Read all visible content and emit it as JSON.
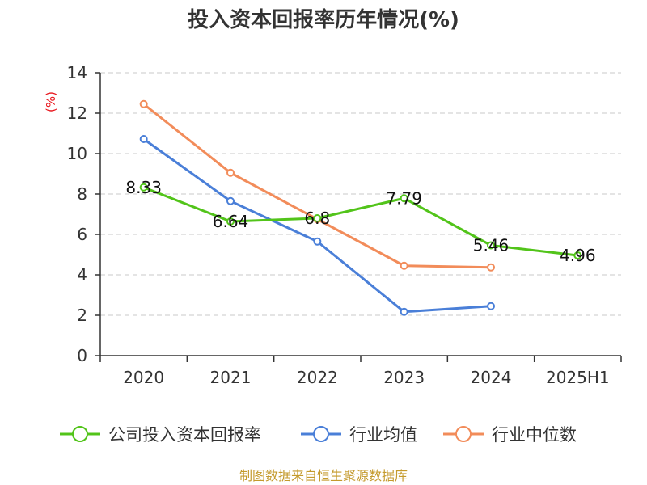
{
  "chart_data": {
    "type": "line",
    "title": "投入资本回报率历年情况(%)",
    "ylabel": "(%)",
    "categories": [
      "2020",
      "2021",
      "2022",
      "2023",
      "2024",
      "2025H1"
    ],
    "ylim": [
      0,
      14
    ],
    "yticks": [
      0,
      2,
      4,
      6,
      8,
      10,
      12,
      14
    ],
    "grid": true,
    "legend_position": "bottom",
    "series": [
      {
        "name": "公司投入资本回报率",
        "color": "#52c41a",
        "values": [
          8.33,
          6.64,
          6.8,
          7.79,
          5.46,
          4.96
        ],
        "labels": [
          "8.33",
          "6.64",
          "6.8",
          "7.79",
          "5.46",
          "4.96"
        ]
      },
      {
        "name": "行业均值",
        "color": "#4a7fd8",
        "values": [
          10.72,
          7.65,
          5.65,
          2.17,
          2.45,
          null
        ]
      },
      {
        "name": "行业中位数",
        "color": "#f28c5a",
        "values": [
          12.45,
          9.05,
          6.75,
          4.45,
          4.37,
          null
        ]
      }
    ],
    "source": "制图数据来自恒生聚源数据库"
  }
}
